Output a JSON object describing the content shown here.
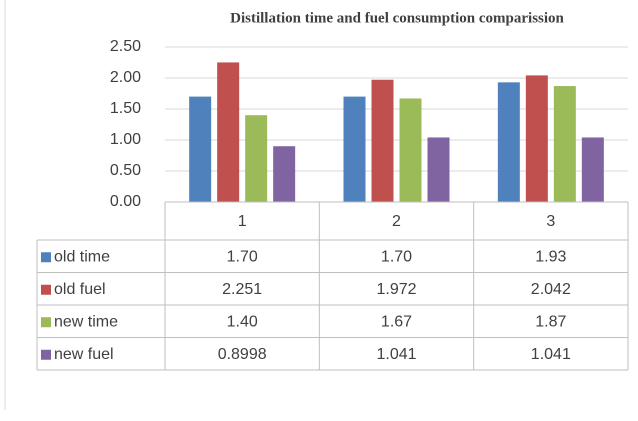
{
  "chart_data": {
    "type": "bar",
    "title": "Distillation time and fuel consumption comparission",
    "categories": [
      "1",
      "2",
      "3"
    ],
    "series": [
      {
        "name": "old time",
        "color": "#4f81bd",
        "values": [
          1.7,
          1.7,
          1.93
        ],
        "value_labels": [
          "1.70",
          "1.70",
          "1.93"
        ]
      },
      {
        "name": "old fuel",
        "color": "#c0504d",
        "values": [
          2.251,
          1.972,
          2.042
        ]
      },
      {
        "name": "new time",
        "color": "#9bbb59",
        "values": [
          1.4,
          1.67,
          1.87
        ],
        "value_labels": [
          "1.40",
          "1.67",
          "1.87"
        ]
      },
      {
        "name": "new fuel",
        "color": "#8064a2",
        "values": [
          0.8998,
          1.041,
          1.041
        ]
      }
    ],
    "ylim": [
      0,
      2.5
    ],
    "yticks": [
      {
        "value": 0,
        "label": "0.00"
      },
      {
        "value": 0.5,
        "label": "0.50"
      },
      {
        "value": 1,
        "label": "1.00"
      },
      {
        "value": 1.5,
        "label": "1.50"
      },
      {
        "value": 2,
        "label": "2.00"
      },
      {
        "value": 2.5,
        "label": "2.50"
      }
    ],
    "grid": true
  }
}
